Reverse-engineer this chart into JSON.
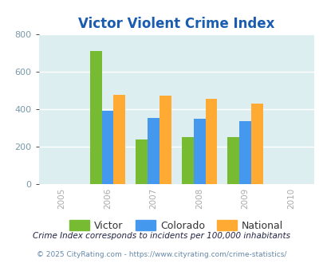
{
  "title": "Victor Violent Crime Index",
  "years": [
    2005,
    2006,
    2007,
    2008,
    2009,
    2010
  ],
  "bar_years": [
    2006,
    2007,
    2008,
    2009
  ],
  "victor": [
    710,
    240,
    252,
    252
  ],
  "colorado": [
    393,
    352,
    347,
    337
  ],
  "national": [
    476,
    470,
    455,
    429
  ],
  "victor_color": "#77bb33",
  "colorado_color": "#4499ee",
  "national_color": "#ffaa33",
  "bg_color": "#ddeef0",
  "title_color": "#1a5cb0",
  "ytick_color": "#7799aa",
  "xtick_color": "#aaaaaa",
  "legend_text_color": "#333333",
  "footnote1_color": "#222244",
  "footnote2_color": "#6688aa",
  "ylim": [
    0,
    800
  ],
  "yticks": [
    0,
    200,
    400,
    600,
    800
  ],
  "xlim": [
    2004.5,
    2010.5
  ],
  "bar_width": 0.26,
  "footnote1": "Crime Index corresponds to incidents per 100,000 inhabitants",
  "footnote2": "© 2025 CityRating.com - https://www.cityrating.com/crime-statistics/",
  "legend_labels": [
    "Victor",
    "Colorado",
    "National"
  ]
}
